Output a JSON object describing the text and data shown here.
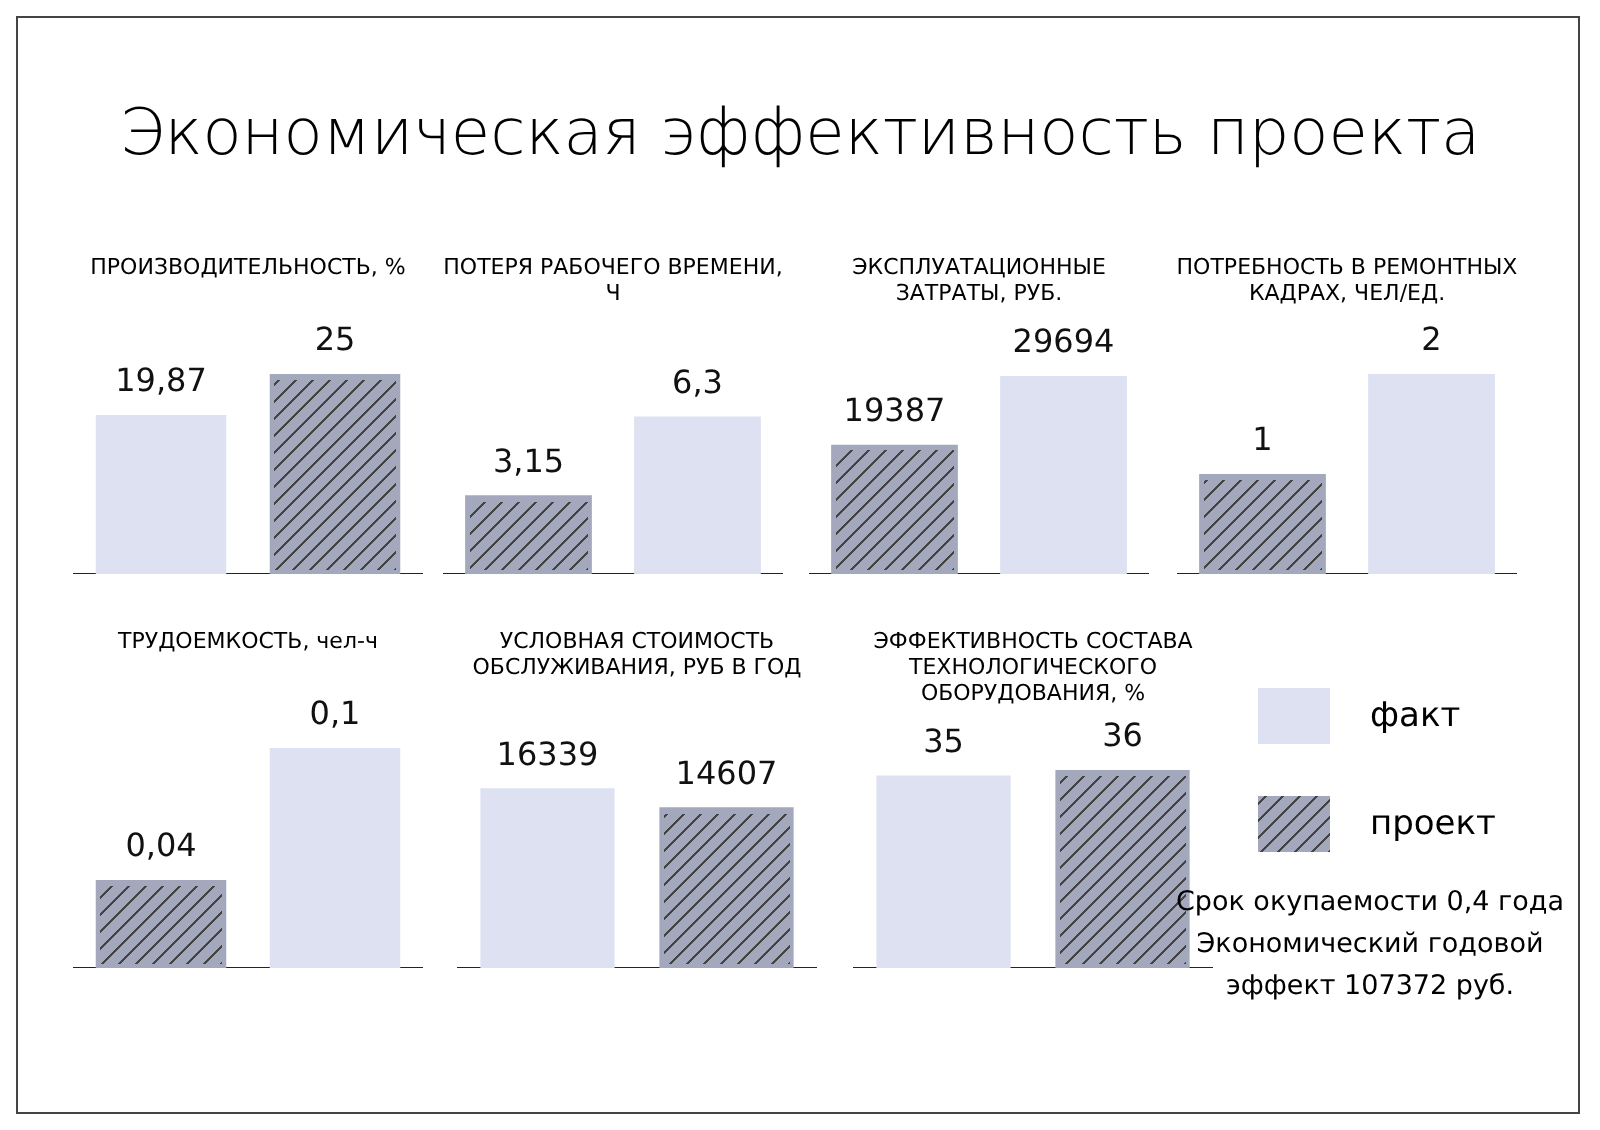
{
  "chart_data": [
    {
      "type": "other",
      "title": "Экономическая эффективность проекта"
    },
    {
      "type": "bar",
      "title": "ПРОИЗВОДИТЕЛЬНОСТЬ, %",
      "categories": [
        null,
        null
      ],
      "values": [
        19.87,
        25
      ],
      "colors": [
        "#dde1f2",
        "#a3a8bd"
      ],
      "value_labels": [
        "19,87",
        "25"
      ]
    },
    {
      "type": "bar",
      "title": "ПОТЕРЯ РАБОЧЕГО ВРЕМЕНИ, Ч",
      "categories": [
        null,
        null
      ],
      "values": [
        3.15,
        6.3
      ],
      "colors": [
        "#a3a8bd",
        "#dde1f2"
      ],
      "value_labels": [
        "3,15",
        "6,3"
      ]
    },
    {
      "type": "bar",
      "title": "ЭКСПЛУАТАЦИОННЫЕ ЗАТРАТЫ, РУБ.",
      "categories": [
        null,
        null
      ],
      "values": [
        19387,
        29694
      ],
      "colors": [
        "#a3a8bd",
        "#dde1f2"
      ],
      "value_labels": [
        "19387",
        "29694"
      ]
    },
    {
      "type": "bar",
      "title": "ПОТРЕБНОСТЬ В РЕМОНТНЫХ КАДРАХ, ЧЕЛ/ЕД.",
      "categories": [
        null,
        null
      ],
      "values": [
        1,
        2
      ],
      "colors": [
        "#a3a8bd",
        "#dde1f2"
      ],
      "value_labels": [
        "1",
        "2"
      ]
    },
    {
      "type": "bar",
      "title": "ТРУДОЕМКОСТЬ, чел-ч",
      "categories": [
        null,
        null
      ],
      "values": [
        0.04,
        0.1
      ],
      "colors": [
        "#a3a8bd",
        "#dde1f2"
      ],
      "value_labels": [
        "0,04",
        "0,1"
      ]
    },
    {
      "type": "bar",
      "title": "УСЛОВНАЯ СТОИМОСТЬ ОБСЛУЖИВАНИЯ, РУБ В ГОД",
      "categories": [
        null,
        null
      ],
      "values": [
        16339,
        14607
      ],
      "colors": [
        "#dde1f2",
        "#a3a8bd"
      ],
      "value_labels": [
        "16339",
        "14607"
      ]
    },
    {
      "type": "bar",
      "title": "ЭФФЕКТИВНОСТЬ СОСТАВА ТЕХНОЛОГИЧЕСКОГО ОБОРУДОВАНИЯ, %",
      "categories": [
        null,
        null
      ],
      "values": [
        35,
        36
      ],
      "colors": [
        "#dde1f2",
        "#a3a8bd"
      ],
      "value_labels": [
        "35",
        "36"
      ]
    },
    {
      "type": "other",
      "annotations": [
        "факт",
        "проект"
      ]
    },
    {
      "type": "other",
      "annotations": [
        "Срок окупаемости 0,4 года",
        "Экономический годовой",
        "эффект 107372 руб."
      ]
    }
  ]
}
